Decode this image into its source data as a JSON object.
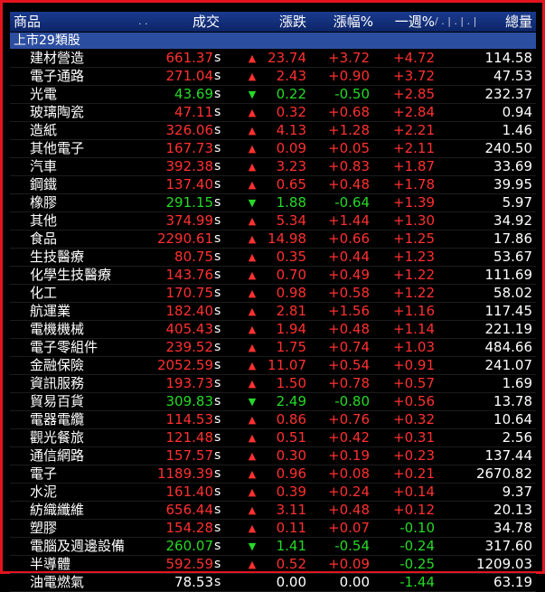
{
  "columns": {
    "name": "商品",
    "dots": ". .",
    "price": "成交",
    "change": "漲跌",
    "pct": "漲幅%",
    "week": "一週%",
    "mini": "/ . | . | . | .",
    "volume": "總量"
  },
  "group_label": "上市29類股",
  "colors": {
    "up": "#ff3030",
    "down": "#26d926",
    "flat": "#ffffff",
    "border": "#e3141e",
    "header_bg": "#1a3b8f",
    "group_bg": "#2c4ea0"
  },
  "rows": [
    {
      "name": "建材營造",
      "price": "661.37",
      "s": "s",
      "dir": "up",
      "chg": "23.74",
      "pct": "+3.72",
      "pct_dir": "up",
      "week": "+4.72",
      "week_dir": "up",
      "vol": "114.58"
    },
    {
      "name": "電子通路",
      "price": "271.04",
      "s": "s",
      "dir": "up",
      "chg": "2.43",
      "pct": "+0.90",
      "pct_dir": "up",
      "week": "+3.72",
      "week_dir": "up",
      "vol": "47.53"
    },
    {
      "name": "光電",
      "price": "43.69",
      "s": "s",
      "dir": "down",
      "chg": "0.22",
      "pct": "-0.50",
      "pct_dir": "down",
      "week": "+2.85",
      "week_dir": "up",
      "vol": "232.37"
    },
    {
      "name": "玻璃陶瓷",
      "price": "47.11",
      "s": "s",
      "dir": "up",
      "chg": "0.32",
      "pct": "+0.68",
      "pct_dir": "up",
      "week": "+2.84",
      "week_dir": "up",
      "vol": "0.94"
    },
    {
      "name": "造紙",
      "price": "326.06",
      "s": "s",
      "dir": "up",
      "chg": "4.13",
      "pct": "+1.28",
      "pct_dir": "up",
      "week": "+2.21",
      "week_dir": "up",
      "vol": "1.46"
    },
    {
      "name": "其他電子",
      "price": "167.73",
      "s": "s",
      "dir": "up",
      "chg": "0.09",
      "pct": "+0.05",
      "pct_dir": "up",
      "week": "+2.11",
      "week_dir": "up",
      "vol": "240.50"
    },
    {
      "name": "汽車",
      "price": "392.38",
      "s": "s",
      "dir": "up",
      "chg": "3.23",
      "pct": "+0.83",
      "pct_dir": "up",
      "week": "+1.87",
      "week_dir": "up",
      "vol": "33.69"
    },
    {
      "name": "鋼鐵",
      "price": "137.40",
      "s": "s",
      "dir": "up",
      "chg": "0.65",
      "pct": "+0.48",
      "pct_dir": "up",
      "week": "+1.78",
      "week_dir": "up",
      "vol": "39.95"
    },
    {
      "name": "橡膠",
      "price": "291.15",
      "s": "s",
      "dir": "down",
      "chg": "1.88",
      "pct": "-0.64",
      "pct_dir": "down",
      "week": "+1.39",
      "week_dir": "up",
      "vol": "5.97"
    },
    {
      "name": "其他",
      "price": "374.99",
      "s": "s",
      "dir": "up",
      "chg": "5.34",
      "pct": "+1.44",
      "pct_dir": "up",
      "week": "+1.30",
      "week_dir": "up",
      "vol": "34.92"
    },
    {
      "name": "食品",
      "price": "2290.61",
      "s": "s",
      "dir": "up",
      "chg": "14.98",
      "pct": "+0.66",
      "pct_dir": "up",
      "week": "+1.25",
      "week_dir": "up",
      "vol": "17.86"
    },
    {
      "name": "生技醫療",
      "price": "80.75",
      "s": "s",
      "dir": "up",
      "chg": "0.35",
      "pct": "+0.44",
      "pct_dir": "up",
      "week": "+1.23",
      "week_dir": "up",
      "vol": "53.67"
    },
    {
      "name": "化學生技醫療",
      "price": "143.76",
      "s": "s",
      "dir": "up",
      "chg": "0.70",
      "pct": "+0.49",
      "pct_dir": "up",
      "week": "+1.22",
      "week_dir": "up",
      "vol": "111.69"
    },
    {
      "name": "化工",
      "price": "170.75",
      "s": "s",
      "dir": "up",
      "chg": "0.98",
      "pct": "+0.58",
      "pct_dir": "up",
      "week": "+1.22",
      "week_dir": "up",
      "vol": "58.02"
    },
    {
      "name": "航運業",
      "price": "182.40",
      "s": "s",
      "dir": "up",
      "chg": "2.81",
      "pct": "+1.56",
      "pct_dir": "up",
      "week": "+1.16",
      "week_dir": "up",
      "vol": "117.45"
    },
    {
      "name": "電機機械",
      "price": "405.43",
      "s": "s",
      "dir": "up",
      "chg": "1.94",
      "pct": "+0.48",
      "pct_dir": "up",
      "week": "+1.14",
      "week_dir": "up",
      "vol": "221.19"
    },
    {
      "name": "電子零組件",
      "price": "239.52",
      "s": "s",
      "dir": "up",
      "chg": "1.75",
      "pct": "+0.74",
      "pct_dir": "up",
      "week": "+1.03",
      "week_dir": "up",
      "vol": "484.66"
    },
    {
      "name": "金融保險",
      "price": "2052.59",
      "s": "s",
      "dir": "up",
      "chg": "11.07",
      "pct": "+0.54",
      "pct_dir": "up",
      "week": "+0.91",
      "week_dir": "up",
      "vol": "241.07"
    },
    {
      "name": "資訊服務",
      "price": "193.73",
      "s": "s",
      "dir": "up",
      "chg": "1.50",
      "pct": "+0.78",
      "pct_dir": "up",
      "week": "+0.57",
      "week_dir": "up",
      "vol": "1.69"
    },
    {
      "name": "貿易百貨",
      "price": "309.83",
      "s": "s",
      "dir": "down",
      "chg": "2.49",
      "pct": "-0.80",
      "pct_dir": "down",
      "week": "+0.56",
      "week_dir": "up",
      "vol": "13.78"
    },
    {
      "name": "電器電纜",
      "price": "114.53",
      "s": "s",
      "dir": "up",
      "chg": "0.86",
      "pct": "+0.76",
      "pct_dir": "up",
      "week": "+0.32",
      "week_dir": "up",
      "vol": "10.64"
    },
    {
      "name": "觀光餐旅",
      "price": "121.48",
      "s": "s",
      "dir": "up",
      "chg": "0.51",
      "pct": "+0.42",
      "pct_dir": "up",
      "week": "+0.31",
      "week_dir": "up",
      "vol": "2.56"
    },
    {
      "name": "通信網路",
      "price": "157.57",
      "s": "s",
      "dir": "up",
      "chg": "0.30",
      "pct": "+0.19",
      "pct_dir": "up",
      "week": "+0.23",
      "week_dir": "up",
      "vol": "137.44"
    },
    {
      "name": "電子",
      "price": "1189.39",
      "s": "s",
      "dir": "up",
      "chg": "0.96",
      "pct": "+0.08",
      "pct_dir": "up",
      "week": "+0.21",
      "week_dir": "up",
      "vol": "2670.82"
    },
    {
      "name": "水泥",
      "price": "161.40",
      "s": "s",
      "dir": "up",
      "chg": "0.39",
      "pct": "+0.24",
      "pct_dir": "up",
      "week": "+0.14",
      "week_dir": "up",
      "vol": "9.37"
    },
    {
      "name": "紡織纖維",
      "price": "656.44",
      "s": "s",
      "dir": "up",
      "chg": "3.11",
      "pct": "+0.48",
      "pct_dir": "up",
      "week": "+0.12",
      "week_dir": "up",
      "vol": "20.13"
    },
    {
      "name": "塑膠",
      "price": "154.28",
      "s": "s",
      "dir": "up",
      "chg": "0.11",
      "pct": "+0.07",
      "pct_dir": "up",
      "week": "-0.10",
      "week_dir": "down",
      "vol": "34.78"
    },
    {
      "name": "電腦及週邊設備",
      "price": "260.07",
      "s": "s",
      "dir": "down",
      "chg": "1.41",
      "pct": "-0.54",
      "pct_dir": "down",
      "week": "-0.24",
      "week_dir": "down",
      "vol": "317.60"
    },
    {
      "name": "半導體",
      "price": "592.59",
      "s": "s",
      "dir": "up",
      "chg": "0.52",
      "pct": "+0.09",
      "pct_dir": "up",
      "week": "-0.25",
      "week_dir": "down",
      "vol": "1209.03"
    },
    {
      "name": "油電燃氣",
      "price": "78.53",
      "s": "s",
      "dir": "flat",
      "chg": "0.00",
      "pct": "0.00",
      "pct_dir": "flat",
      "week": "-1.44",
      "week_dir": "down",
      "vol": "63.19"
    }
  ]
}
